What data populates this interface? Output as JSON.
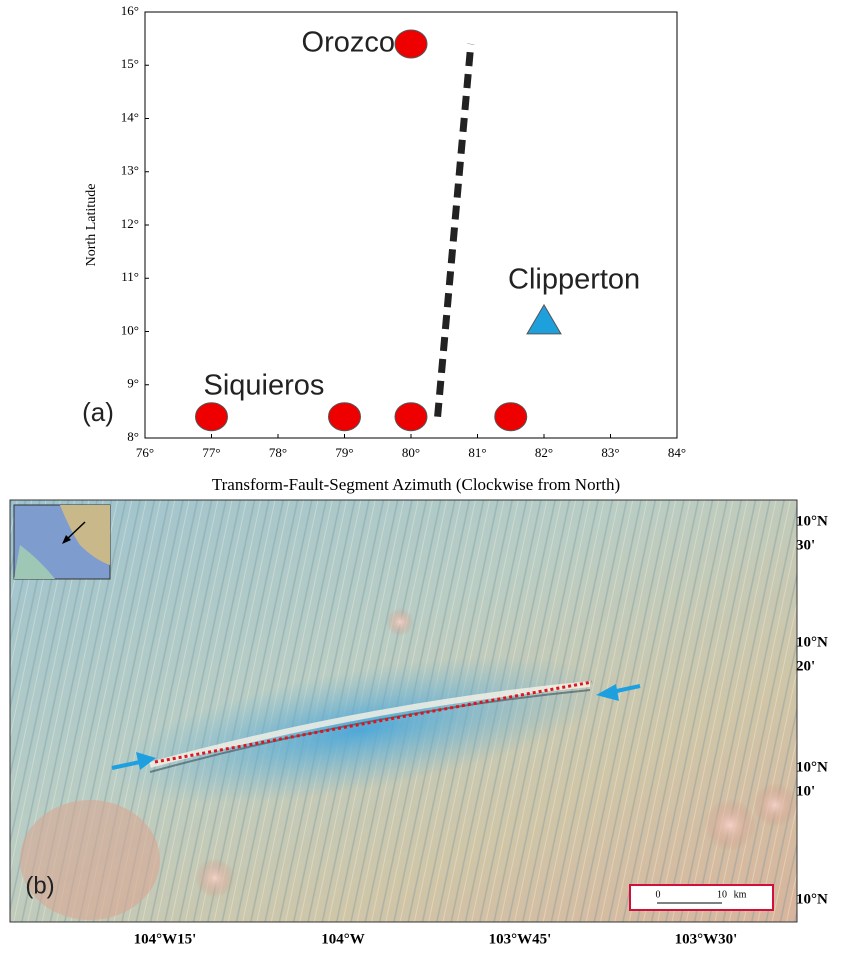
{
  "chart_data": {
    "type": "scatter",
    "xlabel": "Transform-Fault-Segment Azimuth (Clockwise from North)",
    "ylabel": "North Latitude",
    "xlim": [
      76,
      84
    ],
    "ylim": [
      8,
      16
    ],
    "xticks": [
      {
        "value": 76,
        "label": "76°"
      },
      {
        "value": 77,
        "label": "77°"
      },
      {
        "value": 78,
        "label": "78°"
      },
      {
        "value": 79,
        "label": "79°"
      },
      {
        "value": 80,
        "label": "80°"
      },
      {
        "value": 81,
        "label": "81°"
      },
      {
        "value": 82,
        "label": "82°"
      },
      {
        "value": 83,
        "label": "83°"
      },
      {
        "value": 84,
        "label": "84°"
      }
    ],
    "yticks": [
      {
        "value": 8,
        "label": "8°"
      },
      {
        "value": 9,
        "label": "9°"
      },
      {
        "value": 10,
        "label": "10°"
      },
      {
        "value": 11,
        "label": "11°"
      },
      {
        "value": 12,
        "label": "12°"
      },
      {
        "value": 13,
        "label": "13°"
      },
      {
        "value": 14,
        "label": "14°"
      },
      {
        "value": 15,
        "label": "15°"
      },
      {
        "value": 16,
        "label": "16°"
      }
    ],
    "panel_label": "(a)",
    "series": [
      {
        "name": "Siquieros",
        "color": "#ee0000",
        "marker": "circle",
        "x": [
          77,
          79,
          80,
          81.5
        ],
        "values": [
          8.4,
          8.4,
          8.4,
          8.4
        ]
      },
      {
        "name": "Orozco",
        "color": "#ee0000",
        "marker": "circle",
        "x": [
          80
        ],
        "values": [
          15.4
        ]
      },
      {
        "name": "Clipperton",
        "color": "#1ea0dc",
        "marker": "triangle",
        "x": [
          82
        ],
        "values": [
          10.2
        ]
      },
      {
        "type": "line",
        "dash": true,
        "color": "#222222",
        "x": [
          80.4,
          80.9
        ],
        "values": [
          8.4,
          15.4
        ]
      }
    ]
  },
  "map": {
    "panel_label": "(b)",
    "lat_labels": [
      {
        "deg": "10°N",
        "min": "30'"
      },
      {
        "deg": "10°N",
        "min": "20'"
      },
      {
        "deg": "10°N",
        "min": "10'"
      },
      {
        "deg": "10°N"
      }
    ],
    "lon_labels": [
      "104°W15'",
      "104°W",
      "103°W45'",
      "103°W30'"
    ],
    "scale_bar": {
      "start": "0",
      "end": "10",
      "unit": "km"
    }
  }
}
